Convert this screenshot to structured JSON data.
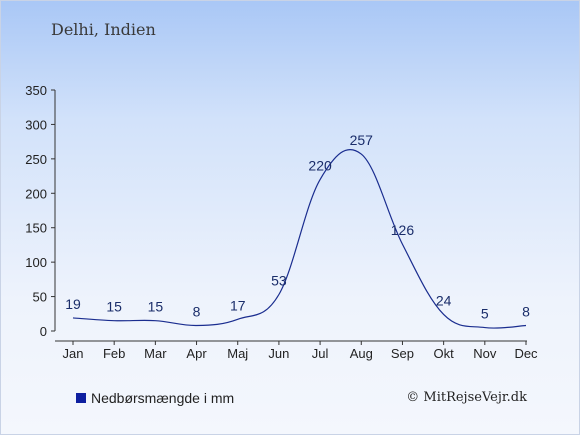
{
  "header": {
    "location": "Delhi, Indien"
  },
  "legend": {
    "label": "Nedbørsmængde i mm",
    "swatch_color": "#0e1fa0"
  },
  "footer": {
    "copyright": "© MitRejseVejr.dk"
  },
  "chart_data": {
    "type": "line",
    "categories": [
      "Jan",
      "Feb",
      "Mar",
      "Apr",
      "Maj",
      "Jun",
      "Jul",
      "Aug",
      "Sep",
      "Okt",
      "Nov",
      "Dec"
    ],
    "series": [
      {
        "name": "Nedbørsmængde i mm",
        "values": [
          19,
          15,
          15,
          8,
          17,
          53,
          220,
          257,
          126,
          24,
          5,
          8
        ],
        "color": "#1a2d8f"
      }
    ],
    "data_labels": [
      "19",
      "15",
      "15",
      "8",
      "17",
      "53",
      "220",
      "257",
      "126",
      "24",
      "5",
      "8"
    ],
    "yticks": [
      "0",
      "50",
      "100",
      "150",
      "200",
      "250",
      "300",
      "350"
    ],
    "ylim": [
      0,
      350
    ],
    "grid": false,
    "legend_position": "bottom-left"
  }
}
